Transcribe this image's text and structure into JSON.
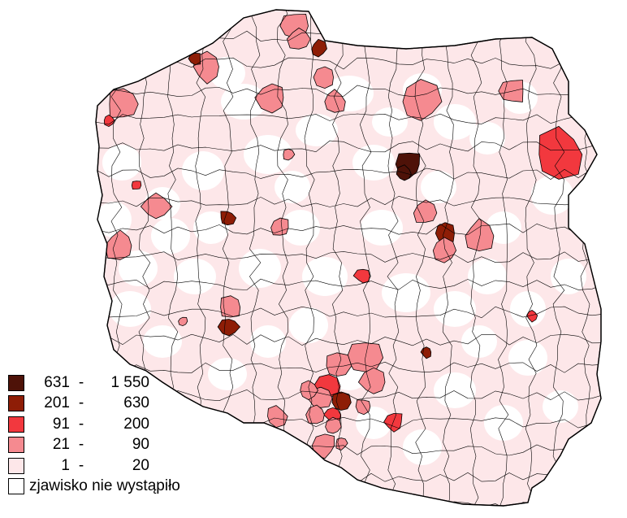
{
  "colors": {
    "outline": "#000000",
    "background": "#ffffff",
    "class_0": "#ffffff",
    "class_1": "#fde7e9",
    "class_2": "#f58a90",
    "class_3": "#f2383e",
    "class_4": "#8e1d06",
    "class_5": "#4e1208"
  },
  "legend": {
    "items": [
      {
        "from": "631",
        "to": "1 550",
        "color": "#4e1208",
        "icon": "swatch-darkest"
      },
      {
        "from": "201",
        "to": "630",
        "color": "#8e1d06",
        "icon": "swatch-dark"
      },
      {
        "from": "91",
        "to": "200",
        "color": "#f2383e",
        "icon": "swatch-red"
      },
      {
        "from": "21",
        "to": "90",
        "color": "#f58a90",
        "icon": "swatch-pink"
      },
      {
        "from": "1",
        "to": "20",
        "color": "#fde7e9",
        "icon": "swatch-light"
      }
    ],
    "none_label": "zjawisko nie wystąpiło",
    "none_color": "#ffffff"
  }
}
